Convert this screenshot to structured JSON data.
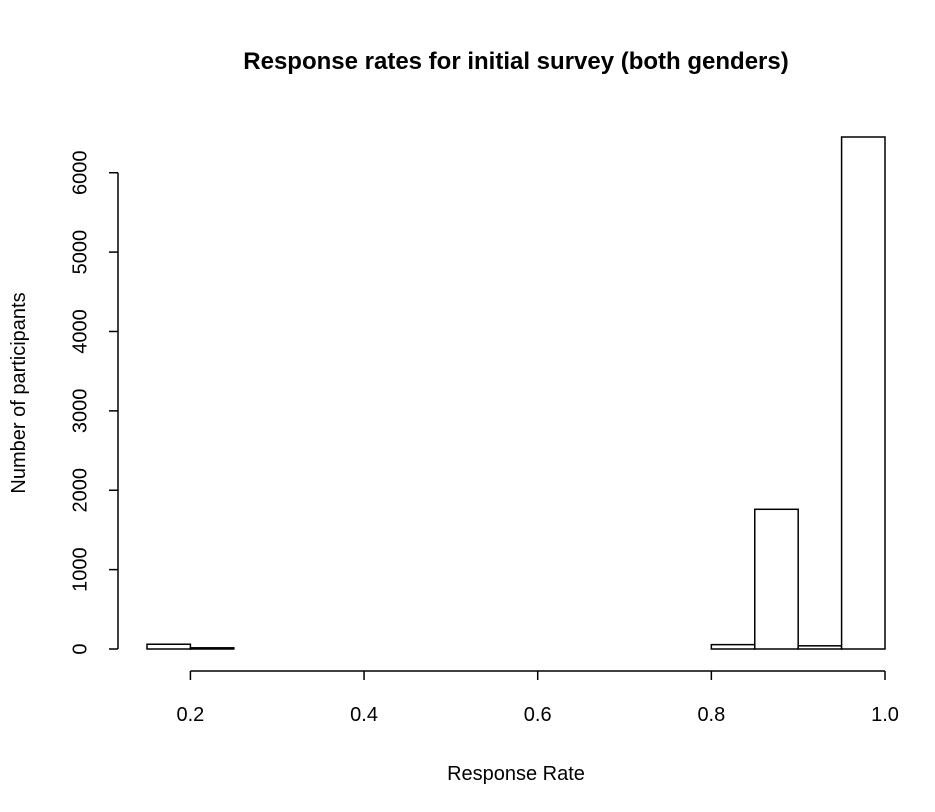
{
  "chart_data": {
    "type": "bar",
    "title": "Response rates for initial survey (both genders)",
    "xlabel": "Response Rate",
    "ylabel": "Number of participants",
    "bins": [
      {
        "x0": 0.15,
        "x1": 0.2,
        "value": 60
      },
      {
        "x0": 0.2,
        "x1": 0.25,
        "value": 15
      },
      {
        "x0": 0.25,
        "x1": 0.3,
        "value": 0
      },
      {
        "x0": 0.3,
        "x1": 0.35,
        "value": 0
      },
      {
        "x0": 0.35,
        "x1": 0.4,
        "value": 0
      },
      {
        "x0": 0.4,
        "x1": 0.45,
        "value": 0
      },
      {
        "x0": 0.45,
        "x1": 0.5,
        "value": 0
      },
      {
        "x0": 0.5,
        "x1": 0.55,
        "value": 0
      },
      {
        "x0": 0.55,
        "x1": 0.6,
        "value": 0
      },
      {
        "x0": 0.6,
        "x1": 0.65,
        "value": 0
      },
      {
        "x0": 0.65,
        "x1": 0.7,
        "value": 0
      },
      {
        "x0": 0.7,
        "x1": 0.75,
        "value": 0
      },
      {
        "x0": 0.75,
        "x1": 0.8,
        "value": 0
      },
      {
        "x0": 0.8,
        "x1": 0.85,
        "value": 55
      },
      {
        "x0": 0.85,
        "x1": 0.9,
        "value": 1760
      },
      {
        "x0": 0.9,
        "x1": 0.95,
        "value": 40
      },
      {
        "x0": 0.95,
        "x1": 1.0,
        "value": 6450
      }
    ],
    "xlim": [
      0.15,
      1.0
    ],
    "ylim": [
      0,
      6450
    ],
    "x_ticks": [
      0.2,
      0.4,
      0.6,
      0.8,
      1.0
    ],
    "x_tick_labels": [
      "0.2",
      "0.4",
      "0.6",
      "0.8",
      "1.0"
    ],
    "y_ticks": [
      0,
      1000,
      2000,
      3000,
      4000,
      5000,
      6000
    ],
    "y_tick_labels": [
      "0",
      "1000",
      "2000",
      "3000",
      "4000",
      "5000",
      "6000"
    ],
    "grid": false,
    "bar_fill": "#ffffff",
    "bar_stroke": "#000000"
  }
}
